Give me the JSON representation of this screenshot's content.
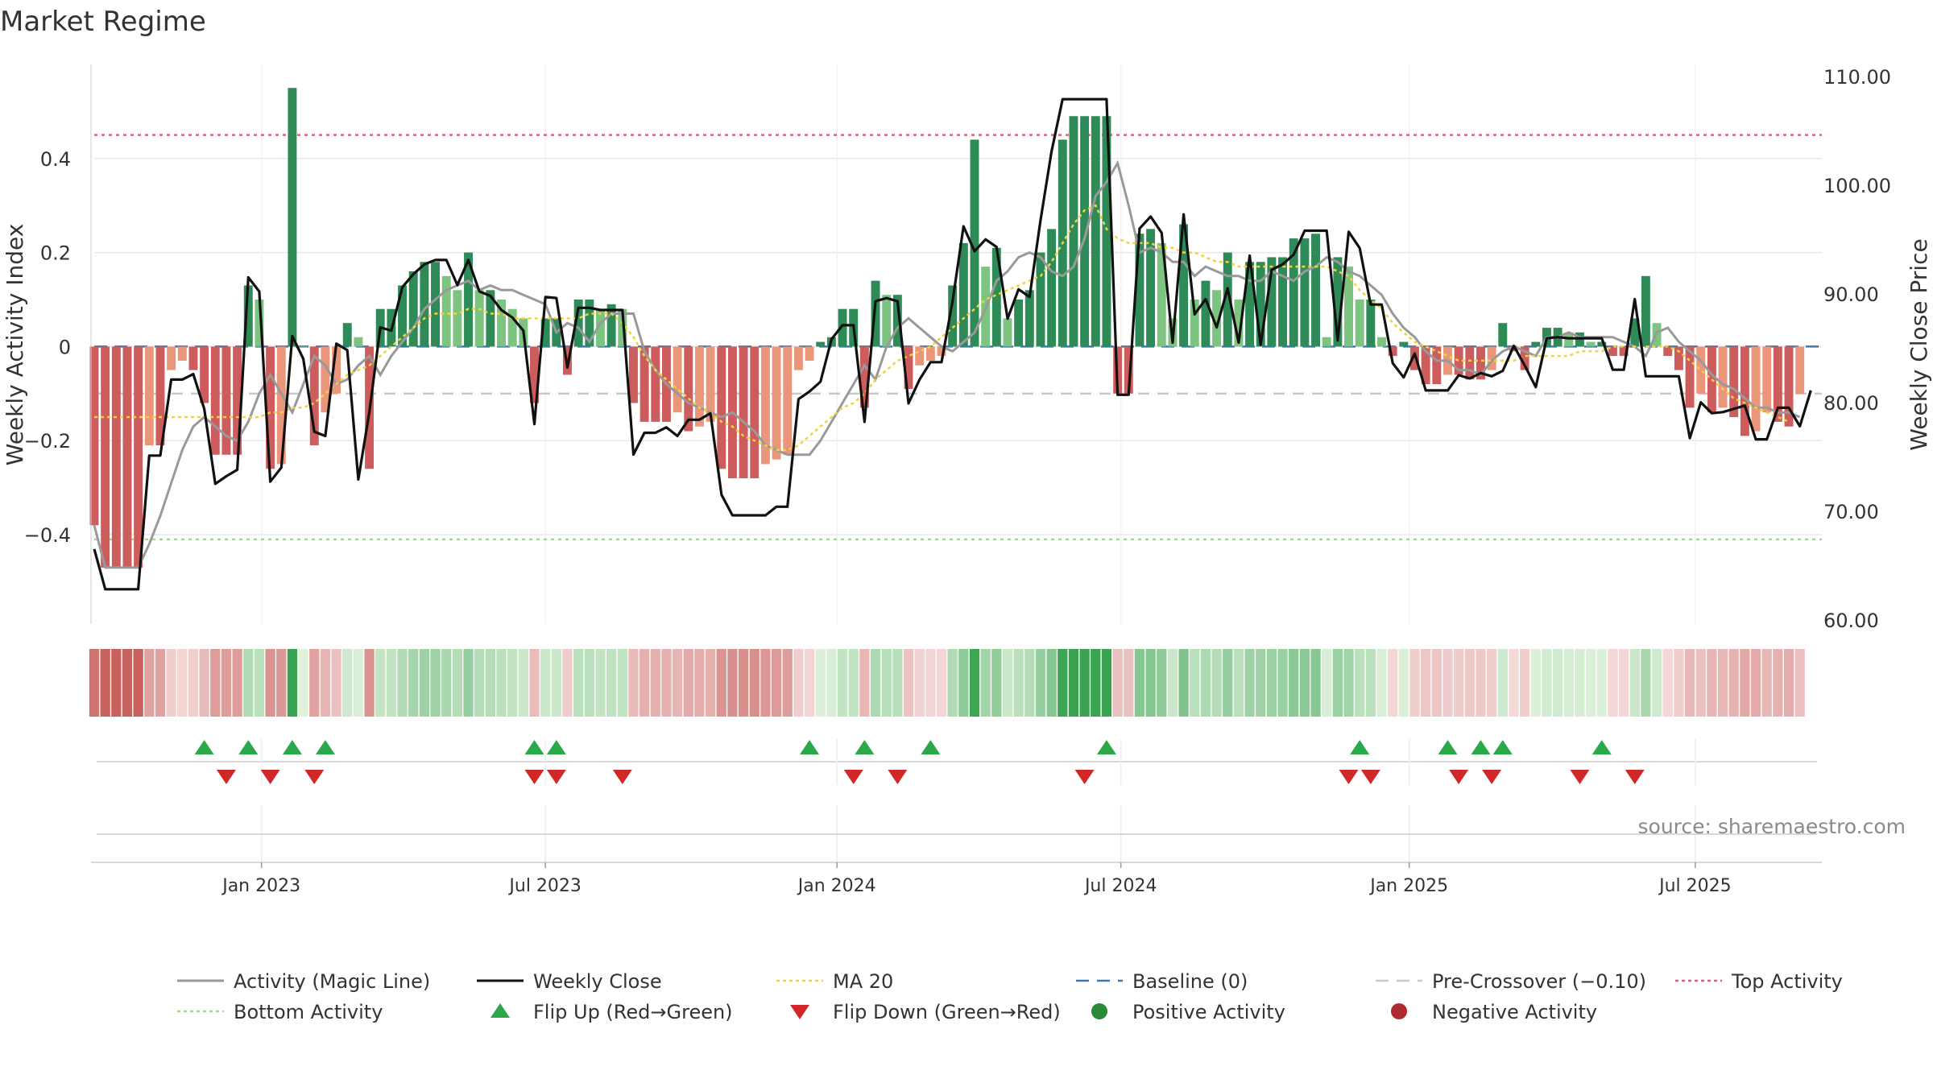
{
  "chart_data": {
    "type": "bar",
    "title": "Market Regime",
    "source": "source: sharemaestro.com",
    "left_axis": {
      "label": "Weekly Activity Index",
      "ticks": [
        -0.4,
        -0.2,
        0,
        0.2,
        0.4
      ],
      "tick_labels": [
        "−0.4",
        "−0.2",
        "0",
        "0.2",
        "0.4"
      ],
      "ylim": [
        -0.59,
        0.6
      ]
    },
    "right_axis": {
      "label": "Weekly Close Price",
      "ticks": [
        60,
        70,
        80,
        90,
        100,
        110
      ],
      "tick_labels": [
        "60.00",
        "70.00",
        "80.00",
        "90.00",
        "100.00",
        "110.00"
      ],
      "ylim": [
        59.7,
        111.2
      ]
    },
    "x_axis": {
      "ticks": [
        "Jan 2023",
        "Jul 2023",
        "Jan 2024",
        "Jul 2024",
        "Jan 2025",
        "Jul 2025"
      ],
      "tick_weeks": [
        15.2,
        41,
        67.5,
        93.3,
        119.5,
        145.5
      ],
      "range": [
        0,
        157
      ]
    },
    "reference_lines": {
      "top_activity": 0.45,
      "bottom_activity": -0.41,
      "baseline": 0,
      "pre_crossover": -0.1
    },
    "series": [
      {
        "name": "Activity (Magic Line)",
        "values": [
          -0.38,
          -0.47,
          -0.47,
          -0.47,
          -0.47,
          -0.42,
          -0.36,
          -0.29,
          -0.22,
          -0.17,
          -0.15,
          -0.17,
          -0.19,
          -0.2,
          -0.16,
          -0.1,
          -0.06,
          -0.1,
          -0.14,
          -0.08,
          -0.02,
          -0.04,
          -0.08,
          -0.07,
          -0.04,
          -0.02,
          -0.06,
          -0.02,
          0.01,
          0.04,
          0.08,
          0.1,
          0.12,
          0.13,
          0.14,
          0.12,
          0.13,
          0.12,
          0.12,
          0.11,
          0.1,
          0.09,
          0.03,
          0.05,
          0.04,
          0.01,
          0.05,
          0.07,
          0.07,
          0.07,
          -0.01,
          -0.05,
          -0.08,
          -0.1,
          -0.12,
          -0.13,
          -0.14,
          -0.15,
          -0.14,
          -0.16,
          -0.18,
          -0.21,
          -0.22,
          -0.23,
          -0.23,
          -0.23,
          -0.2,
          -0.16,
          -0.12,
          -0.08,
          -0.04,
          -0.07,
          0.0,
          0.04,
          0.06,
          0.04,
          0.02,
          0.0,
          -0.01,
          0.01,
          0.03,
          0.08,
          0.14,
          0.16,
          0.19,
          0.2,
          0.19,
          0.16,
          0.15,
          0.17,
          0.23,
          0.32,
          0.35,
          0.39,
          0.3,
          0.2,
          0.21,
          0.2,
          0.18,
          0.18,
          0.15,
          0.17,
          0.16,
          0.15,
          0.15,
          0.14,
          0.14,
          0.16,
          0.15,
          0.14,
          0.16,
          0.17,
          0.19,
          0.18,
          0.16,
          0.15,
          0.13,
          0.11,
          0.07,
          0.04,
          0.02,
          -0.01,
          -0.03,
          -0.03,
          -0.05,
          -0.05,
          -0.06,
          -0.03,
          -0.01,
          0.0,
          -0.01,
          -0.02,
          0.02,
          0.02,
          0.03,
          0.02,
          0.02,
          0.02,
          0.02,
          0.01,
          0.0,
          -0.02,
          0.03,
          0.04,
          0.01,
          -0.01,
          -0.03,
          -0.06,
          -0.08,
          -0.09,
          -0.11,
          -0.13,
          -0.13,
          -0.14,
          -0.14,
          -0.15
        ]
      },
      {
        "name": "Weekly Close",
        "values": [
          66.6,
          62.9,
          62.9,
          62.9,
          62.9,
          75.2,
          75.2,
          82.2,
          82.2,
          82.7,
          79.5,
          72.6,
          73.3,
          73.9,
          91.6,
          90.3,
          72.8,
          74.1,
          86.2,
          84.1,
          77.4,
          77,
          85.5,
          84.9,
          73,
          79.2,
          87,
          86.7,
          90.7,
          91.9,
          92.8,
          93.2,
          93.2,
          90.9,
          93.2,
          90.3,
          89.9,
          88.6,
          87.9,
          86.7,
          78.1,
          89.8,
          89.7,
          83.3,
          88.8,
          88.8,
          88.6,
          88.6,
          88.6,
          75.3,
          77.3,
          77.3,
          77.8,
          77,
          78.5,
          78.5,
          79.1,
          71.6,
          69.7,
          69.7,
          69.7,
          69.7,
          70.5,
          70.5,
          80.4,
          81.1,
          82,
          85.9,
          87.2,
          87.2,
          78.3,
          89.4,
          89.7,
          89.4,
          80,
          82.2,
          83.8,
          83.8,
          89.4,
          96.3,
          94,
          95.1,
          94.4,
          87.8,
          90.5,
          89.8,
          96.9,
          103.2,
          108,
          108,
          108,
          108,
          108,
          80.8,
          80.8,
          96.1,
          97.2,
          95.7,
          85.6,
          97.4,
          88.2,
          89.6,
          87,
          90.6,
          85.6,
          93.6,
          85.4,
          92.3,
          92.8,
          93.7,
          95.9,
          95.9,
          95.9,
          85.8,
          95.8,
          94.3,
          89.1,
          89.1,
          83.7,
          82.4,
          84.6,
          81.2,
          81.2,
          81.2,
          82.6,
          82.3,
          82.8,
          82.5,
          83,
          85.3,
          83.5,
          81.5,
          86,
          86.1,
          86,
          86,
          86,
          86,
          83.1,
          83.1,
          89.6,
          82.5,
          82.5,
          82.5,
          82.5,
          76.8,
          80.1,
          79.1,
          79.2,
          79.5,
          79.8,
          76.7,
          76.7,
          79.6,
          79.6,
          77.9,
          81.2
        ]
      },
      {
        "name": "MA 20",
        "values": [
          -0.15,
          -0.15,
          -0.15,
          -0.15,
          -0.15,
          -0.15,
          -0.15,
          -0.15,
          -0.15,
          -0.15,
          -0.15,
          -0.15,
          -0.15,
          -0.15,
          -0.15,
          -0.15,
          -0.14,
          -0.14,
          -0.13,
          -0.13,
          -0.12,
          -0.1,
          -0.08,
          -0.06,
          -0.05,
          -0.04,
          -0.02,
          0.0,
          0.02,
          0.04,
          0.06,
          0.07,
          0.07,
          0.07,
          0.08,
          0.08,
          0.07,
          0.07,
          0.06,
          0.06,
          0.06,
          0.06,
          0.06,
          0.06,
          0.06,
          0.07,
          0.07,
          0.07,
          0.05,
          0.02,
          -0.02,
          -0.05,
          -0.07,
          -0.09,
          -0.11,
          -0.13,
          -0.14,
          -0.16,
          -0.17,
          -0.19,
          -0.2,
          -0.21,
          -0.22,
          -0.22,
          -0.21,
          -0.19,
          -0.17,
          -0.15,
          -0.13,
          -0.12,
          -0.1,
          -0.07,
          -0.05,
          -0.03,
          -0.02,
          -0.01,
          0.0,
          0.02,
          0.04,
          0.06,
          0.08,
          0.1,
          0.11,
          0.12,
          0.13,
          0.14,
          0.15,
          0.18,
          0.22,
          0.26,
          0.29,
          0.3,
          0.25,
          0.23,
          0.22,
          0.22,
          0.22,
          0.21,
          0.21,
          0.2,
          0.2,
          0.19,
          0.18,
          0.18,
          0.17,
          0.17,
          0.17,
          0.17,
          0.17,
          0.17,
          0.17,
          0.17,
          0.17,
          0.16,
          0.15,
          0.12,
          0.1,
          0.08,
          0.05,
          0.03,
          0.01,
          0.0,
          -0.01,
          -0.02,
          -0.03,
          -0.03,
          -0.03,
          -0.03,
          -0.03,
          -0.03,
          -0.02,
          -0.02,
          -0.02,
          -0.02,
          -0.02,
          -0.01,
          -0.01,
          -0.01,
          0.0,
          0.0,
          0.0,
          0.0,
          0.0,
          0.0,
          -0.01,
          -0.03,
          -0.05,
          -0.07,
          -0.09,
          -0.11,
          -0.12,
          -0.13,
          -0.14,
          -0.15,
          -0.16
        ]
      },
      {
        "name": "Weekly Activity Index",
        "values": [
          -0.38,
          -0.47,
          -0.47,
          -0.47,
          -0.47,
          -0.21,
          -0.21,
          -0.05,
          -0.03,
          -0.05,
          -0.12,
          -0.23,
          -0.23,
          -0.23,
          0.13,
          0.1,
          -0.26,
          -0.25,
          0.55,
          0,
          -0.21,
          -0.14,
          -0.1,
          0.05,
          0.02,
          -0.26,
          0.08,
          0.08,
          0.13,
          0.16,
          0.18,
          0.18,
          0.15,
          0.12,
          0.2,
          0.12,
          0.12,
          0.1,
          0.08,
          0.06,
          -0.12,
          0.06,
          0.06,
          -0.06,
          0.1,
          0.1,
          0.08,
          0.09,
          0.08,
          -0.12,
          -0.16,
          -0.16,
          -0.16,
          -0.14,
          -0.18,
          -0.17,
          -0.16,
          -0.26,
          -0.28,
          -0.28,
          -0.28,
          -0.25,
          -0.24,
          -0.23,
          -0.05,
          -0.03,
          0.01,
          0.02,
          0.08,
          0.08,
          -0.13,
          0.14,
          0.11,
          0.11,
          -0.09,
          -0.04,
          -0.03,
          -0.02,
          0.13,
          0.22,
          0.44,
          0.17,
          0.21,
          0.06,
          0.1,
          0.12,
          0.2,
          0.25,
          0.44,
          0.49,
          0.49,
          0.49,
          0.49,
          -0.1,
          -0.1,
          0.24,
          0.25,
          0.22,
          0.06,
          0.26,
          0.1,
          0.14,
          0.12,
          0.2,
          0.1,
          0.18,
          0.18,
          0.19,
          0.19,
          0.23,
          0.23,
          0.24,
          0.02,
          0.19,
          0.17,
          0.1,
          0.1,
          0.02,
          -0.02,
          0.01,
          -0.05,
          -0.08,
          -0.08,
          -0.06,
          -0.06,
          -0.07,
          -0.07,
          -0.05,
          0.05,
          -0.01,
          -0.05,
          0.01,
          0.04,
          0.04,
          0.03,
          0.03,
          0.01,
          0.01,
          -0.02,
          -0.02,
          0.06,
          0.15,
          0.05,
          -0.02,
          -0.05,
          -0.13,
          -0.1,
          -0.14,
          -0.13,
          -0.15,
          -0.19,
          -0.18,
          -0.14,
          -0.16,
          -0.17,
          -0.1
        ]
      }
    ],
    "flip_up_weeks": [
      10,
      14,
      18,
      21,
      40,
      42,
      65,
      70,
      76,
      92,
      115,
      123,
      126,
      128,
      137
    ],
    "flip_down_weeks": [
      12,
      16,
      20,
      40,
      42,
      48,
      69,
      73,
      90,
      114,
      116,
      124,
      127,
      135,
      140
    ],
    "legend": [
      {
        "label": "Activity (Magic Line)",
        "kind": "line",
        "color": "#999999"
      },
      {
        "label": "Weekly Close",
        "kind": "line",
        "color": "#111111"
      },
      {
        "label": "MA 20",
        "kind": "dotted",
        "color": "#f2d33c"
      },
      {
        "label": "Baseline (0)",
        "kind": "dashed",
        "color": "#3a78b0"
      },
      {
        "label": "Pre-Crossover (−0.10)",
        "kind": "dashed",
        "color": "#c8c8c8"
      },
      {
        "label": "Top Activity",
        "kind": "dotted",
        "color": "#e06078"
      },
      {
        "label": "Bottom Activity",
        "kind": "dotted",
        "color": "#a8d88a"
      },
      {
        "label": "Flip Up (Red→Green)",
        "kind": "up-triangle",
        "color": "#2aa84a"
      },
      {
        "label": "Flip Down (Green→Red)",
        "kind": "down-triangle",
        "color": "#d02828"
      },
      {
        "label": "Positive Activity",
        "kind": "dot",
        "color": "#2a8a3a"
      },
      {
        "label": "Negative Activity",
        "kind": "dot",
        "color": "#b02830"
      }
    ],
    "colors": {
      "positive_strong": "#2e8b57",
      "positive_light": "#7cc47f",
      "negative_strong": "#cd5c5c",
      "negative_light": "#e9967a",
      "grid": "#e8e8e8"
    }
  }
}
